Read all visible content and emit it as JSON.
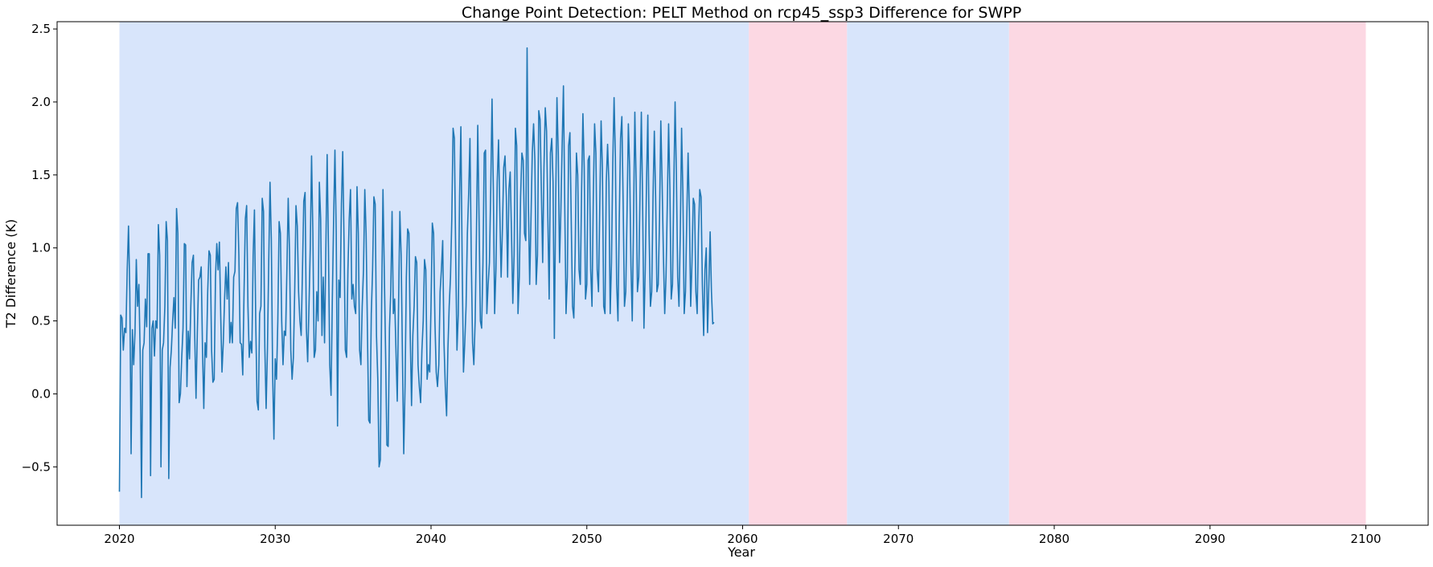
{
  "chart_data": {
    "type": "line",
    "title": "Change Point Detection: PELT Method on rcp45_ssp3 Difference for SWPP",
    "xlabel": "Year",
    "ylabel": "T2 Difference (K)",
    "xlim": [
      2016,
      2104
    ],
    "ylim": [
      -0.9,
      2.55
    ],
    "xticks": [
      2020,
      2030,
      2040,
      2050,
      2060,
      2070,
      2080,
      2090,
      2100
    ],
    "yticks": [
      -0.5,
      0.0,
      0.5,
      1.0,
      1.5,
      2.0,
      2.5
    ],
    "xtick_labels": [
      "2020",
      "2030",
      "2040",
      "2050",
      "2060",
      "2070",
      "2080",
      "2090",
      "2100"
    ],
    "ytick_labels": [
      "−0.5",
      "0.0",
      "0.5",
      "1.0",
      "1.5",
      "2.0",
      "2.5"
    ],
    "grid": false,
    "legend": "none",
    "line_color": "#1f77b4",
    "segments": [
      {
        "start": 2020.0,
        "end": 2060.4,
        "color": "#d8e5fb"
      },
      {
        "start": 2060.4,
        "end": 2066.7,
        "color": "#fcd8e3"
      },
      {
        "start": 2066.7,
        "end": 2077.1,
        "color": "#d8e5fb"
      },
      {
        "start": 2077.1,
        "end": 2100.0,
        "color": "#fcd8e3"
      }
    ],
    "series": [
      {
        "x_start": 2020.0,
        "x_step": 0.08333,
        "note_sampling": "monthly",
        "values": [
          -0.67,
          0.54,
          0.52,
          0.3,
          0.45,
          0.42,
          0.85,
          1.15,
          0.7,
          -0.41,
          0.44,
          0.2,
          0.42,
          0.92,
          0.6,
          0.75,
          0.26,
          -0.71,
          0.3,
          0.35,
          0.65,
          0.46,
          0.96,
          0.96,
          -0.56,
          0.45,
          0.5,
          0.26,
          0.5,
          0.45,
          1.16,
          0.95,
          -0.5,
          0.3,
          0.35,
          0.6,
          1.18,
          1.05,
          -0.58,
          0.18,
          0.3,
          0.5,
          0.66,
          0.45,
          1.27,
          1.1,
          -0.06,
          0.0,
          0.25,
          0.45,
          1.03,
          1.02,
          0.05,
          0.43,
          0.24,
          0.6,
          0.9,
          0.95,
          0.4,
          -0.03,
          0.42,
          0.78,
          0.8,
          0.87,
          0.3,
          -0.1,
          0.35,
          0.25,
          0.7,
          0.98,
          0.95,
          0.3,
          0.08,
          0.1,
          0.8,
          1.03,
          0.85,
          1.04,
          0.55,
          0.15,
          0.35,
          0.65,
          0.87,
          0.65,
          0.9,
          0.35,
          0.49,
          0.35,
          0.8,
          0.84,
          1.27,
          1.31,
          0.95,
          0.35,
          0.34,
          0.13,
          0.7,
          1.2,
          1.29,
          0.6,
          0.25,
          0.36,
          0.28,
          0.95,
          1.26,
          0.5,
          -0.05,
          -0.11,
          0.55,
          0.6,
          1.34,
          1.25,
          0.32,
          -0.1,
          0.3,
          0.9,
          1.45,
          1.06,
          0.15,
          -0.31,
          0.24,
          0.1,
          0.5,
          1.18,
          1.1,
          0.5,
          0.2,
          0.43,
          0.4,
          0.85,
          1.34,
          0.98,
          0.3,
          0.1,
          0.25,
          0.7,
          1.29,
          1.15,
          0.7,
          0.5,
          0.4,
          0.85,
          1.32,
          1.38,
          0.45,
          0.22,
          0.6,
          1.0,
          1.63,
          1.1,
          0.25,
          0.3,
          0.7,
          0.5,
          1.45,
          1.2,
          0.4,
          0.8,
          0.35,
          1.0,
          1.64,
          1.0,
          0.2,
          -0.01,
          0.65,
          1.2,
          1.67,
          1.1,
          -0.22,
          0.78,
          0.66,
          1.3,
          1.66,
          1.05,
          0.3,
          0.25,
          0.85,
          1.2,
          1.4,
          0.65,
          0.75,
          0.6,
          0.55,
          1.42,
          1.1,
          0.3,
          0.2,
          0.6,
          0.85,
          1.4,
          1.1,
          0.45,
          -0.18,
          -0.2,
          0.55,
          0.85,
          1.35,
          1.3,
          0.4,
          0.1,
          -0.5,
          -0.45,
          0.65,
          1.4,
          0.85,
          0.28,
          -0.35,
          -0.36,
          0.45,
          0.7,
          1.25,
          0.55,
          0.65,
          0.3,
          -0.05,
          0.6,
          1.25,
          0.95,
          0.25,
          -0.41,
          0.05,
          0.8,
          1.13,
          1.1,
          0.4,
          -0.08,
          0.4,
          0.6,
          0.94,
          0.9,
          0.2,
          0.05,
          -0.06,
          0.3,
          0.5,
          0.92,
          0.85,
          0.1,
          0.2,
          0.15,
          0.6,
          1.17,
          1.1,
          0.5,
          0.15,
          0.05,
          0.2,
          0.7,
          0.85,
          1.05,
          0.35,
          0.05,
          -0.15,
          0.3,
          0.6,
          0.8,
          1.2,
          1.82,
          1.75,
          0.95,
          0.3,
          0.55,
          1.35,
          1.83,
          0.9,
          0.15,
          0.35,
          0.6,
          1.1,
          1.37,
          1.75,
          0.95,
          0.35,
          0.2,
          0.5,
          1.1,
          1.84,
          1.2,
          0.5,
          0.45,
          0.9,
          1.65,
          1.67,
          0.55,
          0.75,
          0.9,
          1.4,
          2.02,
          1.4,
          0.55,
          0.85,
          1.45,
          1.74,
          1.25,
          0.8,
          1.13,
          1.55,
          1.63,
          1.35,
          0.8,
          1.4,
          1.52,
          1.1,
          0.62,
          0.95,
          1.82,
          1.7,
          0.55,
          0.8,
          1.35,
          1.65,
          1.6,
          1.1,
          1.05,
          2.37,
          1.3,
          0.75,
          1.2,
          1.65,
          1.85,
          1.6,
          0.75,
          0.95,
          1.94,
          1.88,
          1.4,
          0.9,
          1.55,
          1.96,
          1.8,
          1.2,
          0.65,
          1.65,
          1.75,
          1.45,
          0.38,
          1.3,
          2.03,
          1.65,
          0.9,
          1.25,
          1.7,
          2.11,
          1.3,
          0.55,
          0.8,
          1.7,
          1.79,
          1.2,
          0.6,
          0.52,
          0.95,
          1.65,
          1.5,
          0.85,
          0.75,
          1.4,
          1.92,
          1.55,
          0.65,
          0.75,
          1.6,
          1.63,
          0.85,
          0.6,
          1.35,
          1.85,
          1.65,
          0.85,
          0.7,
          1.3,
          1.87,
          1.55,
          0.6,
          0.55,
          1.45,
          1.71,
          1.45,
          0.55,
          0.9,
          1.58,
          2.03,
          1.62,
          0.75,
          0.5,
          1.2,
          1.75,
          1.9,
          1.3,
          0.6,
          0.7,
          1.25,
          1.85,
          1.55,
          0.88,
          0.5,
          1.2,
          1.93,
          1.45,
          0.7,
          0.8,
          1.38,
          1.93,
          1.3,
          0.45,
          0.85,
          1.45,
          1.91,
          1.1,
          0.6,
          0.7,
          1.35,
          1.8,
          1.35,
          0.7,
          0.75,
          1.2,
          1.87,
          1.45,
          0.95,
          0.55,
          0.8,
          1.3,
          1.85,
          1.4,
          0.65,
          0.75,
          1.42,
          2.0,
          1.5,
          0.8,
          0.6,
          1.1,
          1.82,
          1.38,
          0.55,
          0.7,
          1.2,
          1.65,
          1.25,
          0.6,
          0.9,
          1.34,
          1.3,
          0.7,
          0.55,
          1.1,
          1.4,
          1.35,
          0.75,
          0.4,
          0.85,
          1.0,
          0.42,
          0.75,
          1.11,
          0.7,
          0.48,
          0.49
        ]
      }
    ]
  }
}
